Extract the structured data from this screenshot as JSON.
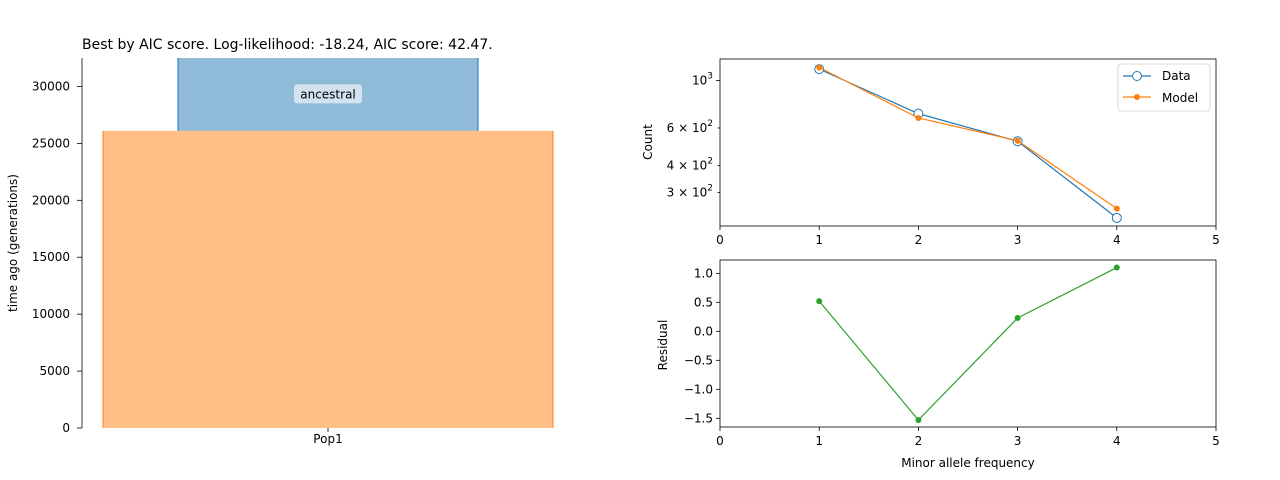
{
  "chart_data": [
    {
      "type": "demography",
      "title": "Best by AIC score. Log-likelihood: -18.24, AIC score:  42.47.",
      "xlabel": "",
      "ylabel": "time ago (generations)",
      "ylim": [
        0,
        32500
      ],
      "yticks": [
        0,
        5000,
        10000,
        15000,
        20000,
        25000,
        30000
      ],
      "xtick_labels": [
        "Pop1"
      ],
      "populations": [
        {
          "name": "ancestral",
          "start": 26100,
          "end": 32500,
          "color": "#8fbad8",
          "edge": "#1f77b4",
          "labeled": true
        },
        {
          "name": "Pop1",
          "start": 0,
          "end": 26100,
          "color": "#ffbe86",
          "edge": "#ff7f0e",
          "labeled": false
        }
      ]
    },
    {
      "type": "line",
      "xlabel": "",
      "ylabel": "Count",
      "yscale": "log",
      "xlim": [
        0,
        5
      ],
      "xticks": [
        0,
        1,
        2,
        3,
        4,
        5
      ],
      "yticks": [
        {
          "value": 1000,
          "base": "10",
          "exp": "3"
        },
        {
          "value": 600,
          "base": "6 × 10",
          "exp": "2"
        },
        {
          "value": 400,
          "base": "4 × 10",
          "exp": "2"
        },
        {
          "value": 300,
          "base": "3 × 10",
          "exp": "2"
        }
      ],
      "legend": "top-right",
      "x": [
        1,
        2,
        3,
        4
      ],
      "series": [
        {
          "name": "Data",
          "values": [
            1130,
            700,
            520,
            228
          ],
          "color": "#1f77b4",
          "marker": "open-circle"
        },
        {
          "name": "Model",
          "values": [
            1150,
            668,
            523,
            252
          ],
          "color": "#ff7f0e",
          "marker": "dot"
        }
      ]
    },
    {
      "type": "line",
      "xlabel": "Minor allele frequency",
      "ylabel": "Residual",
      "xlim": [
        0,
        5
      ],
      "ylim": [
        -1.65,
        1.23
      ],
      "xticks": [
        0,
        1,
        2,
        3,
        4,
        5
      ],
      "yticks": [
        -1.5,
        -1.0,
        -0.5,
        0.0,
        0.5,
        1.0
      ],
      "x": [
        1,
        2,
        3,
        4
      ],
      "series": [
        {
          "values": [
            0.52,
            -1.53,
            0.23,
            1.1
          ],
          "color": "#2ca02c",
          "marker": "dot"
        }
      ]
    }
  ]
}
